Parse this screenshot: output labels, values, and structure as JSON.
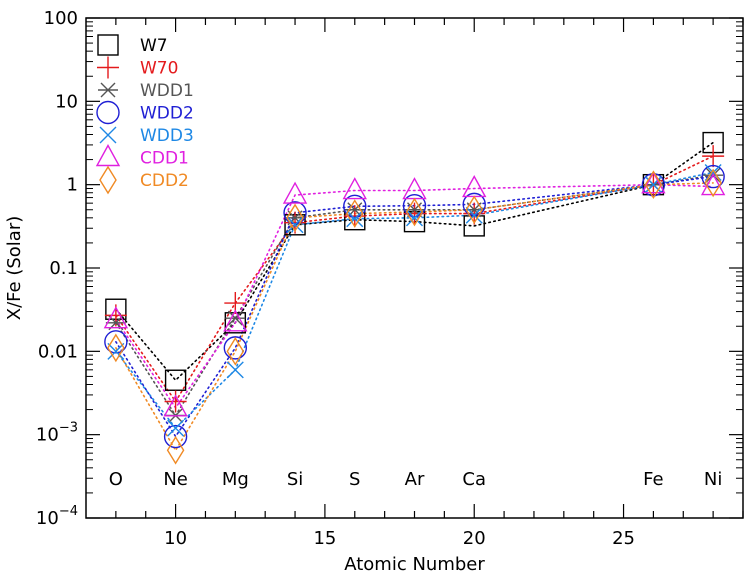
{
  "chart_data": {
    "type": "scatter",
    "xlabel": "Atomic Number",
    "ylabel": "X/Fe (Solar)",
    "xlim": [
      7,
      29
    ],
    "ylim": [
      0.0001,
      100
    ],
    "yscale": "log",
    "x_ticks": [
      10,
      15,
      20,
      25
    ],
    "x_tick_labels": [
      "10",
      "15",
      "20",
      "25"
    ],
    "y_ticks": [
      0.0001,
      0.001,
      0.01,
      0.1,
      1,
      10,
      100
    ],
    "y_tick_labels": [
      {
        "base": "10",
        "exp": "−4"
      },
      {
        "base": "10",
        "exp": "−3"
      },
      {
        "base": "0.01",
        "exp": ""
      },
      {
        "base": "0.1",
        "exp": ""
      },
      {
        "base": "1",
        "exp": ""
      },
      {
        "base": "10",
        "exp": ""
      },
      {
        "base": "100",
        "exp": ""
      }
    ],
    "element_labels": [
      {
        "z": 8,
        "name": "O"
      },
      {
        "z": 10,
        "name": "Ne"
      },
      {
        "z": 12,
        "name": "Mg"
      },
      {
        "z": 14,
        "name": "Si"
      },
      {
        "z": 16,
        "name": "S"
      },
      {
        "z": 18,
        "name": "Ar"
      },
      {
        "z": 20,
        "name": "Ca"
      },
      {
        "z": 26,
        "name": "Fe"
      },
      {
        "z": 28,
        "name": "Ni"
      }
    ],
    "x": [
      8,
      10,
      12,
      14,
      16,
      18,
      20,
      26,
      28
    ],
    "series": [
      {
        "name": "W7",
        "marker": "square",
        "color": "#000000",
        "values": [
          0.032,
          0.0045,
          0.022,
          0.33,
          0.38,
          0.36,
          0.32,
          1.0,
          3.2
        ]
      },
      {
        "name": "W70",
        "marker": "plus",
        "color": "#e41a1c",
        "values": [
          0.027,
          0.0025,
          0.038,
          0.35,
          0.42,
          0.45,
          0.45,
          1.0,
          2.2
        ]
      },
      {
        "name": "WDD1",
        "marker": "asterisk",
        "color": "#555555",
        "values": [
          0.022,
          0.0017,
          0.025,
          0.4,
          0.5,
          0.5,
          0.5,
          1.0,
          1.3
        ]
      },
      {
        "name": "WDD2",
        "marker": "circle",
        "color": "#1f1fd4",
        "values": [
          0.013,
          0.00095,
          0.011,
          0.46,
          0.55,
          0.56,
          0.58,
          1.0,
          1.25
        ]
      },
      {
        "name": "WDD3",
        "marker": "x",
        "color": "#1e88e5",
        "values": [
          0.01,
          0.0012,
          0.006,
          0.33,
          0.39,
          0.4,
          0.43,
          1.0,
          1.4
        ]
      },
      {
        "name": "CDD1",
        "marker": "triangle",
        "color": "#e020e0",
        "values": [
          0.024,
          0.0021,
          0.022,
          0.75,
          0.85,
          0.85,
          0.9,
          1.0,
          0.95
        ]
      },
      {
        "name": "CDD2",
        "marker": "diamond",
        "color": "#f08a24",
        "values": [
          0.011,
          0.00065,
          0.01,
          0.4,
          0.45,
          0.47,
          0.5,
          1.0,
          1.05
        ]
      }
    ],
    "legend_position": "top-left",
    "grid": false
  }
}
